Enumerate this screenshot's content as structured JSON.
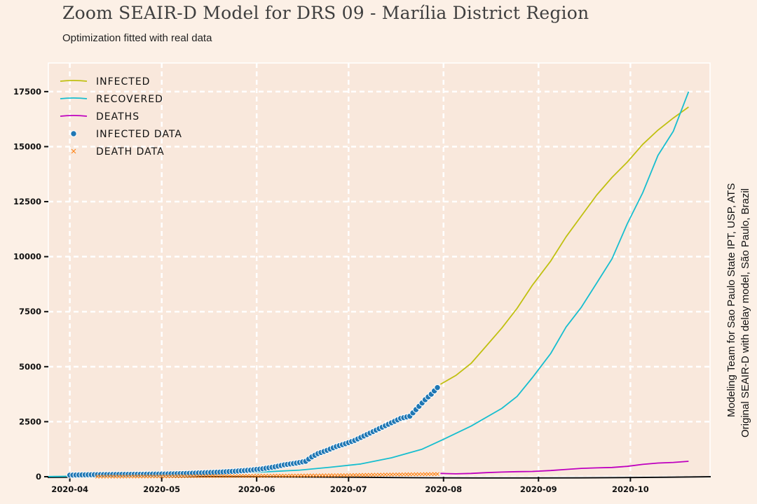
{
  "title": "Zoom SEAIR-D Model for DRS 09 - Marília District Region",
  "subtitle": "Optimization fitted with real data",
  "credits": [
    "Modeling Team for Sao Paulo State IPT, USP, ATS",
    "Original SEAIR-D with delay model, São Paulo, Brazil"
  ],
  "colors": {
    "background": "#fcf0e6",
    "plot_bg": "#f9e8dc",
    "infected": "#c0c010",
    "recovered": "#17becf",
    "deaths": "#bf00bf",
    "infected_data": "#1f77b4",
    "death_data": "#ff7f0e"
  },
  "chart_data": {
    "type": "line",
    "x_axis": {
      "type": "date",
      "min": "2020-03-25",
      "max": "2020-10-27",
      "ticks": [
        "2020-04",
        "2020-05",
        "2020-06",
        "2020-07",
        "2020-08",
        "2020-09",
        "2020-10"
      ]
    },
    "y_axis": {
      "min": 0,
      "max": 18800,
      "ticks": [
        0,
        2500,
        5000,
        7500,
        10000,
        12500,
        15000,
        17500
      ]
    },
    "grid": true,
    "legend_position": "top-left",
    "series": [
      {
        "name": "Infected",
        "kind": "line",
        "color": "#c0c010",
        "points": [
          [
            "2020-07-31",
            4200
          ],
          [
            "2020-08-05",
            4600
          ],
          [
            "2020-08-10",
            5150
          ],
          [
            "2020-08-15",
            5950
          ],
          [
            "2020-08-20",
            6750
          ],
          [
            "2020-08-25",
            7650
          ],
          [
            "2020-08-30",
            8700
          ],
          [
            "2020-09-05",
            9800
          ],
          [
            "2020-09-10",
            10900
          ],
          [
            "2020-09-15",
            11850
          ],
          [
            "2020-09-20",
            12800
          ],
          [
            "2020-09-25",
            13600
          ],
          [
            "2020-09-30",
            14300
          ],
          [
            "2020-10-05",
            15100
          ],
          [
            "2020-10-10",
            15750
          ],
          [
            "2020-10-15",
            16300
          ],
          [
            "2020-10-20",
            16800
          ]
        ]
      },
      {
        "name": "Recovered",
        "kind": "line",
        "color": "#17becf",
        "points": [
          [
            "2020-03-25",
            5
          ],
          [
            "2020-04-05",
            25
          ],
          [
            "2020-04-20",
            55
          ],
          [
            "2020-05-01",
            90
          ],
          [
            "2020-05-15",
            140
          ],
          [
            "2020-06-01",
            200
          ],
          [
            "2020-06-15",
            300
          ],
          [
            "2020-06-25",
            430
          ],
          [
            "2020-07-05",
            580
          ],
          [
            "2020-07-15",
            860
          ],
          [
            "2020-07-25",
            1250
          ],
          [
            "2020-08-01",
            1700
          ],
          [
            "2020-08-10",
            2300
          ],
          [
            "2020-08-20",
            3100
          ],
          [
            "2020-08-25",
            3650
          ],
          [
            "2020-08-30",
            4500
          ],
          [
            "2020-09-05",
            5600
          ],
          [
            "2020-09-10",
            6800
          ],
          [
            "2020-09-15",
            7700
          ],
          [
            "2020-09-20",
            8800
          ],
          [
            "2020-09-25",
            9900
          ],
          [
            "2020-09-30",
            11500
          ],
          [
            "2020-10-05",
            12900
          ],
          [
            "2020-10-10",
            14600
          ],
          [
            "2020-10-15",
            15700
          ],
          [
            "2020-10-20",
            17500
          ]
        ]
      },
      {
        "name": "Deaths",
        "kind": "line",
        "color": "#bf00bf",
        "points": [
          [
            "2020-07-31",
            150
          ],
          [
            "2020-08-05",
            130
          ],
          [
            "2020-08-10",
            150
          ],
          [
            "2020-08-15",
            185
          ],
          [
            "2020-08-20",
            210
          ],
          [
            "2020-08-25",
            230
          ],
          [
            "2020-08-30",
            240
          ],
          [
            "2020-09-05",
            280
          ],
          [
            "2020-09-10",
            330
          ],
          [
            "2020-09-15",
            380
          ],
          [
            "2020-09-20",
            400
          ],
          [
            "2020-09-25",
            420
          ],
          [
            "2020-09-30",
            470
          ],
          [
            "2020-10-05",
            560
          ],
          [
            "2020-10-10",
            620
          ],
          [
            "2020-10-15",
            650
          ],
          [
            "2020-10-20",
            700
          ]
        ]
      },
      {
        "name": "Infected Data",
        "kind": "scatter",
        "color": "#1f77b4",
        "points": [
          [
            "2020-04-01",
            70
          ],
          [
            "2020-04-05",
            85
          ],
          [
            "2020-04-10",
            95
          ],
          [
            "2020-04-15",
            100
          ],
          [
            "2020-04-20",
            105
          ],
          [
            "2020-04-25",
            110
          ],
          [
            "2020-05-01",
            120
          ],
          [
            "2020-05-05",
            130
          ],
          [
            "2020-05-10",
            150
          ],
          [
            "2020-05-15",
            180
          ],
          [
            "2020-05-20",
            210
          ],
          [
            "2020-05-25",
            250
          ],
          [
            "2020-05-30",
            300
          ],
          [
            "2020-06-03",
            360
          ],
          [
            "2020-06-07",
            450
          ],
          [
            "2020-06-10",
            540
          ],
          [
            "2020-06-14",
            620
          ],
          [
            "2020-06-17",
            700
          ],
          [
            "2020-06-19",
            900
          ],
          [
            "2020-06-21",
            1050
          ],
          [
            "2020-06-24",
            1200
          ],
          [
            "2020-06-27",
            1370
          ],
          [
            "2020-06-30",
            1500
          ],
          [
            "2020-07-03",
            1650
          ],
          [
            "2020-07-06",
            1850
          ],
          [
            "2020-07-09",
            2050
          ],
          [
            "2020-07-12",
            2250
          ],
          [
            "2020-07-15",
            2450
          ],
          [
            "2020-07-18",
            2650
          ],
          [
            "2020-07-21",
            2750
          ],
          [
            "2020-07-24",
            3200
          ],
          [
            "2020-07-26",
            3500
          ],
          [
            "2020-07-28",
            3750
          ],
          [
            "2020-07-30",
            4050
          ]
        ]
      },
      {
        "name": "Death Data",
        "kind": "scatter",
        "color": "#ff7f0e",
        "points": [
          [
            "2020-04-10",
            5
          ],
          [
            "2020-05-01",
            15
          ],
          [
            "2020-05-20",
            30
          ],
          [
            "2020-06-10",
            45
          ],
          [
            "2020-07-01",
            70
          ],
          [
            "2020-07-15",
            100
          ],
          [
            "2020-07-30",
            120
          ]
        ]
      }
    ],
    "legend": [
      "Infected",
      "Recovered",
      "Deaths",
      "Infected Data",
      "Death Data"
    ]
  }
}
